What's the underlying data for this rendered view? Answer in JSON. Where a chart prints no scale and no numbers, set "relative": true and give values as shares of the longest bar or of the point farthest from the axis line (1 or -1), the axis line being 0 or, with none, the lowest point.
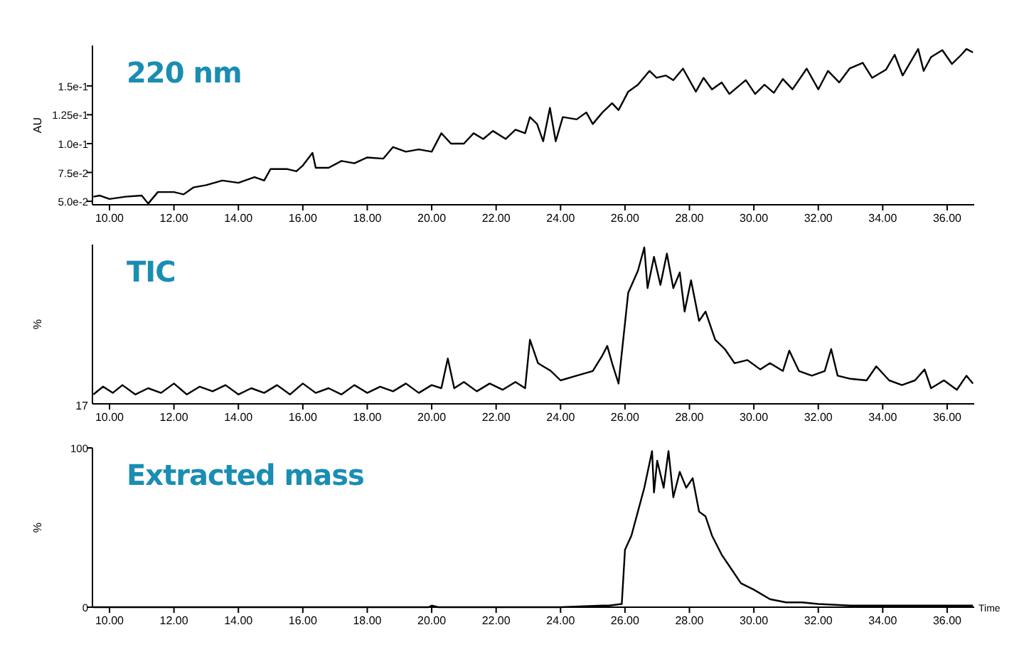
{
  "chart_data": [
    {
      "type": "line",
      "title": "220 nm",
      "ylabel": "AU",
      "xlim": [
        9.47,
        36.84
      ],
      "ylim": [
        0.047,
        0.185
      ],
      "xticks": [
        {
          "value": 10,
          "label": "10.00"
        },
        {
          "value": 12,
          "label": "12.00"
        },
        {
          "value": 14,
          "label": "14.00"
        },
        {
          "value": 16,
          "label": "16.00"
        },
        {
          "value": 18,
          "label": "18.00"
        },
        {
          "value": 20,
          "label": "20.00"
        },
        {
          "value": 22,
          "label": "22.00"
        },
        {
          "value": 24,
          "label": "24.00"
        },
        {
          "value": 26,
          "label": "26.00"
        },
        {
          "value": 28,
          "label": "28.00"
        },
        {
          "value": 30,
          "label": "30.00"
        },
        {
          "value": 32,
          "label": "32.00"
        },
        {
          "value": 34,
          "label": "34.00"
        },
        {
          "value": 36,
          "label": "36.00"
        }
      ],
      "yticks": [
        {
          "value": 0.05,
          "label": "5.0e-2"
        },
        {
          "value": 0.075,
          "label": "7.5e-2"
        },
        {
          "value": 0.1,
          "label": "1.0e-1"
        },
        {
          "value": 0.125,
          "label": "1.25e-1"
        },
        {
          "value": 0.15,
          "label": "1.5e-1"
        }
      ],
      "series": [
        {
          "color": "#000000",
          "x": [
            9.5,
            9.7,
            10.0,
            10.5,
            11.0,
            11.2,
            11.5,
            12.0,
            12.3,
            12.6,
            13.0,
            13.5,
            14.0,
            14.5,
            14.8,
            15.0,
            15.5,
            15.8,
            16.0,
            16.3,
            16.4,
            16.8,
            17.2,
            17.6,
            18.0,
            18.5,
            18.8,
            19.2,
            19.6,
            20.0,
            20.3,
            20.6,
            21.0,
            21.3,
            21.6,
            21.9,
            22.3,
            22.6,
            22.9,
            23.05,
            23.27,
            23.46,
            23.67,
            23.85,
            24.07,
            24.5,
            24.8,
            25.0,
            25.3,
            25.6,
            25.8,
            26.1,
            26.4,
            26.76,
            26.98,
            27.27,
            27.5,
            27.8,
            28.2,
            28.44,
            28.7,
            29.0,
            29.24,
            29.75,
            30.04,
            30.33,
            30.62,
            30.9,
            31.2,
            31.64,
            32.0,
            32.3,
            32.65,
            32.97,
            33.38,
            33.67,
            34.1,
            34.37,
            34.62,
            35.1,
            35.27,
            35.5,
            35.85,
            36.15,
            36.44,
            36.6,
            36.8
          ],
          "values": [
            0.054,
            0.055,
            0.052,
            0.054,
            0.055,
            0.048,
            0.058,
            0.058,
            0.056,
            0.062,
            0.064,
            0.068,
            0.066,
            0.071,
            0.068,
            0.078,
            0.078,
            0.076,
            0.081,
            0.092,
            0.079,
            0.079,
            0.085,
            0.083,
            0.088,
            0.087,
            0.097,
            0.093,
            0.095,
            0.093,
            0.109,
            0.1,
            0.1,
            0.109,
            0.104,
            0.111,
            0.104,
            0.112,
            0.109,
            0.123,
            0.117,
            0.102,
            0.131,
            0.102,
            0.123,
            0.121,
            0.127,
            0.117,
            0.127,
            0.135,
            0.129,
            0.145,
            0.151,
            0.163,
            0.157,
            0.159,
            0.155,
            0.165,
            0.145,
            0.157,
            0.147,
            0.153,
            0.143,
            0.155,
            0.143,
            0.151,
            0.144,
            0.156,
            0.147,
            0.165,
            0.147,
            0.163,
            0.153,
            0.165,
            0.17,
            0.157,
            0.164,
            0.177,
            0.159,
            0.182,
            0.163,
            0.175,
            0.181,
            0.169,
            0.177,
            0.182,
            0.179
          ]
        }
      ]
    },
    {
      "type": "line",
      "title": "TIC",
      "ylabel": "%",
      "relative": true,
      "annotations": [
        "17"
      ],
      "xlim": [
        9.47,
        36.84
      ],
      "xticks": [
        {
          "value": 10,
          "label": "10.00"
        },
        {
          "value": 12,
          "label": "12.00"
        },
        {
          "value": 14,
          "label": "14.00"
        },
        {
          "value": 16,
          "label": "16.00"
        },
        {
          "value": 18,
          "label": "18.00"
        },
        {
          "value": 20,
          "label": "20.00"
        },
        {
          "value": 22,
          "label": "22.00"
        },
        {
          "value": 24,
          "label": "24.00"
        },
        {
          "value": 26,
          "label": "26.00"
        },
        {
          "value": 28,
          "label": "28.00"
        },
        {
          "value": 30,
          "label": "30.00"
        },
        {
          "value": 32,
          "label": "32.00"
        },
        {
          "value": 34,
          "label": "34.00"
        },
        {
          "value": 36,
          "label": "36.00"
        }
      ],
      "series": [
        {
          "color": "#000000",
          "x": [
            9.5,
            9.8,
            10.1,
            10.4,
            10.8,
            11.2,
            11.6,
            12.0,
            12.4,
            12.8,
            13.2,
            13.6,
            14.0,
            14.4,
            14.8,
            15.2,
            15.6,
            16.0,
            16.4,
            16.8,
            17.2,
            17.6,
            18.0,
            18.4,
            18.8,
            19.2,
            19.6,
            20.0,
            20.3,
            20.5,
            20.7,
            21.0,
            21.4,
            21.8,
            22.2,
            22.6,
            22.9,
            23.05,
            23.3,
            23.7,
            24.0,
            24.5,
            25.0,
            25.3,
            25.45,
            25.6,
            25.8,
            26.1,
            26.4,
            26.6,
            26.7,
            26.9,
            27.1,
            27.3,
            27.5,
            27.7,
            27.85,
            28.05,
            28.3,
            28.5,
            28.8,
            29.1,
            29.4,
            29.8,
            30.2,
            30.5,
            30.9,
            31.1,
            31.4,
            31.8,
            32.2,
            32.4,
            32.6,
            33.0,
            33.5,
            33.8,
            34.2,
            34.6,
            35.0,
            35.3,
            35.5,
            35.9,
            36.3,
            36.6,
            36.8
          ],
          "values": [
            0.06,
            0.11,
            0.07,
            0.12,
            0.06,
            0.1,
            0.07,
            0.13,
            0.06,
            0.11,
            0.08,
            0.12,
            0.06,
            0.1,
            0.07,
            0.12,
            0.06,
            0.13,
            0.07,
            0.1,
            0.06,
            0.12,
            0.07,
            0.11,
            0.08,
            0.13,
            0.07,
            0.12,
            0.1,
            0.29,
            0.1,
            0.14,
            0.08,
            0.13,
            0.09,
            0.14,
            0.1,
            0.41,
            0.26,
            0.21,
            0.15,
            0.18,
            0.21,
            0.31,
            0.37,
            0.26,
            0.13,
            0.71,
            0.85,
            1.0,
            0.74,
            0.94,
            0.76,
            0.96,
            0.74,
            0.84,
            0.59,
            0.79,
            0.53,
            0.59,
            0.41,
            0.35,
            0.26,
            0.28,
            0.22,
            0.26,
            0.21,
            0.34,
            0.21,
            0.18,
            0.21,
            0.35,
            0.18,
            0.16,
            0.15,
            0.24,
            0.15,
            0.12,
            0.15,
            0.22,
            0.1,
            0.15,
            0.09,
            0.18,
            0.13
          ]
        }
      ]
    },
    {
      "type": "line",
      "title": "Extracted mass",
      "ylabel": "%",
      "xlabel": "Time",
      "xlim": [
        9.47,
        36.84
      ],
      "ylim": [
        0,
        100
      ],
      "yticks": [
        0,
        100
      ],
      "xticks": [
        {
          "value": 10,
          "label": "10.00"
        },
        {
          "value": 12,
          "label": "12.00"
        },
        {
          "value": 14,
          "label": "14.00"
        },
        {
          "value": 16,
          "label": "16.00"
        },
        {
          "value": 18,
          "label": "18.00"
        },
        {
          "value": 20,
          "label": "20.00"
        },
        {
          "value": 22,
          "label": "22.00"
        },
        {
          "value": 24,
          "label": "24.00"
        },
        {
          "value": 26,
          "label": "26.00"
        },
        {
          "value": 28,
          "label": "28.00"
        },
        {
          "value": 30,
          "label": "30.00"
        },
        {
          "value": 32,
          "label": "32.00"
        },
        {
          "value": 34,
          "label": "34.00"
        },
        {
          "value": 36,
          "label": "36.00"
        }
      ],
      "series": [
        {
          "color": "#000000",
          "x": [
            9.5,
            12,
            15,
            18,
            19.9,
            20.0,
            20.2,
            22,
            24,
            25.3,
            25.5,
            25.9,
            26.0,
            26.2,
            26.4,
            26.6,
            26.84,
            26.9,
            27.0,
            27.2,
            27.35,
            27.5,
            27.7,
            27.9,
            28.1,
            28.3,
            28.5,
            28.7,
            29.0,
            29.3,
            29.6,
            30.0,
            30.5,
            31.0,
            31.5,
            32,
            33,
            34,
            35,
            36,
            36.8
          ],
          "values": [
            0,
            0,
            0,
            0,
            0,
            1,
            0,
            0,
            0,
            1,
            1,
            2,
            36,
            45,
            60,
            75,
            98,
            72,
            92,
            75,
            98,
            69,
            85,
            75,
            81,
            60,
            57,
            45,
            33,
            24,
            15,
            11,
            5,
            3,
            3,
            2,
            1,
            1,
            1,
            1,
            1
          ]
        }
      ]
    }
  ]
}
